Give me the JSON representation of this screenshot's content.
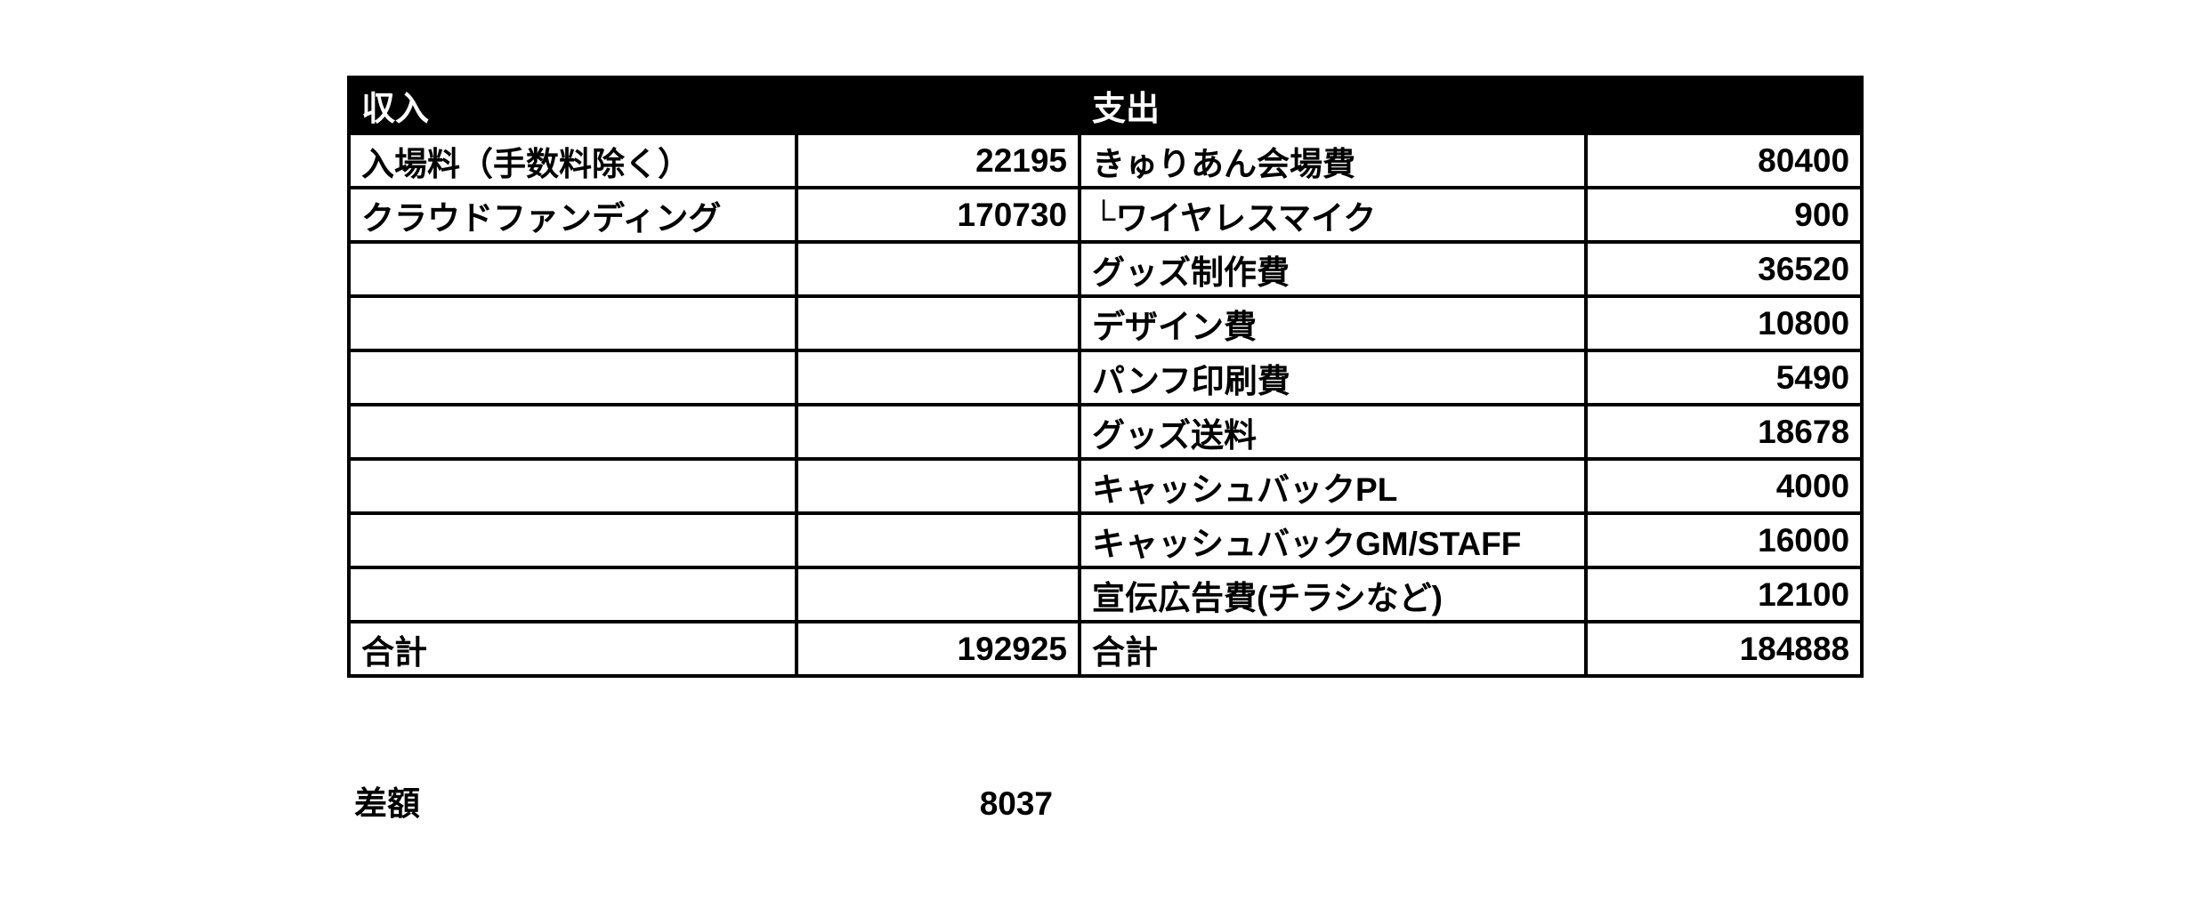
{
  "page": {
    "background_color": "#ffffff",
    "text_color": "#000000",
    "header_bg_color": "#000000",
    "header_text_color": "#ffffff"
  },
  "table": {
    "header": {
      "income": "収入",
      "expense": "支出"
    },
    "rows": [
      {
        "income_label": "入場料（手数料除く）",
        "income_value": "22195",
        "expense_label": "きゅりあん会場費",
        "expense_value": "80400"
      },
      {
        "income_label": "クラウドファンディング",
        "income_value": "170730",
        "expense_label": "└ワイヤレスマイク",
        "expense_value": "900"
      },
      {
        "income_label": "",
        "income_value": "",
        "expense_label": "グッズ制作費",
        "expense_value": "36520"
      },
      {
        "income_label": "",
        "income_value": "",
        "expense_label": "デザイン費",
        "expense_value": "10800"
      },
      {
        "income_label": "",
        "income_value": "",
        "expense_label": "パンフ印刷費",
        "expense_value": "5490"
      },
      {
        "income_label": "",
        "income_value": "",
        "expense_label": "グッズ送料",
        "expense_value": "18678"
      },
      {
        "income_label": "",
        "income_value": "",
        "expense_label": "キャッシュバックPL",
        "expense_value": "4000"
      },
      {
        "income_label": "",
        "income_value": "",
        "expense_label": "キャッシュバックGM/STAFF",
        "expense_value": "16000"
      },
      {
        "income_label": "",
        "income_value": "",
        "expense_label": "宣伝広告費(チラシなど)",
        "expense_value": "12100"
      }
    ],
    "total_row": {
      "income_label": "合計",
      "income_value": "192925",
      "expense_label": "合計",
      "expense_value": "184888"
    }
  },
  "summary": {
    "label": "差額",
    "value": "8037"
  }
}
